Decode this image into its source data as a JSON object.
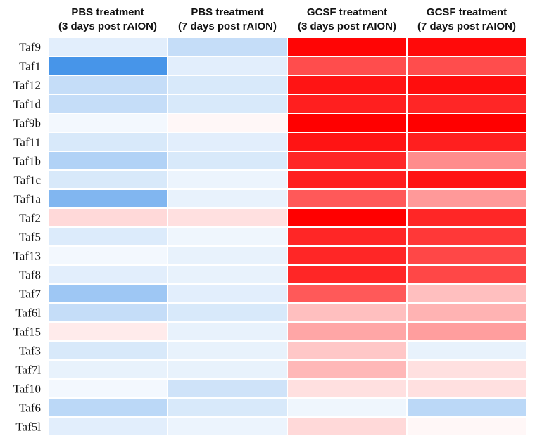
{
  "chart_data": {
    "type": "heatmap",
    "title": "",
    "columns": [
      [
        "PBS treatment",
        "(3 days post rAION)"
      ],
      [
        "PBS treatment",
        "(7 days post rAION)"
      ],
      [
        "GCSF treatment",
        "(3 days post rAION)"
      ],
      [
        "GCSF treatment",
        "(7 days post rAION)"
      ]
    ],
    "rows": [
      "Taf9",
      "Taf1",
      "Taf12",
      "Taf1d",
      "Taf9b",
      "Taf11",
      "Taf1b",
      "Taf1c",
      "Taf1a",
      "Taf2",
      "Taf5",
      "Taf13",
      "Taf8",
      "Taf7",
      "Taf6l",
      "Taf15",
      "Taf3",
      "Taf7l",
      "Taf10",
      "Taf6",
      "Taf5l"
    ],
    "color_scale": {
      "low": "#3d8fe8",
      "mid": "#ffffff",
      "high": "#ff0000",
      "min": -1,
      "max": 1
    },
    "values": [
      [
        -0.15,
        -0.3,
        0.98,
        0.96
      ],
      [
        -0.95,
        -0.15,
        0.7,
        0.7
      ],
      [
        -0.3,
        -0.2,
        0.92,
        0.95
      ],
      [
        -0.3,
        -0.2,
        0.88,
        0.85
      ],
      [
        -0.06,
        0.03,
        1.0,
        1.0
      ],
      [
        -0.2,
        -0.15,
        0.92,
        0.88
      ],
      [
        -0.4,
        -0.2,
        0.85,
        0.45
      ],
      [
        -0.2,
        -0.1,
        0.88,
        0.92
      ],
      [
        -0.65,
        -0.12,
        0.65,
        0.4
      ],
      [
        0.15,
        0.12,
        1.0,
        0.85
      ],
      [
        -0.18,
        -0.08,
        0.85,
        0.78
      ],
      [
        -0.06,
        -0.12,
        0.85,
        0.72
      ],
      [
        -0.15,
        -0.12,
        0.85,
        0.72
      ],
      [
        -0.5,
        -0.15,
        0.65,
        0.25
      ],
      [
        -0.3,
        -0.2,
        0.25,
        0.3
      ],
      [
        0.08,
        -0.12,
        0.35,
        0.38
      ],
      [
        -0.2,
        -0.12,
        0.22,
        -0.12
      ],
      [
        -0.12,
        -0.12,
        0.28,
        0.12
      ],
      [
        -0.06,
        -0.25,
        0.12,
        0.12
      ],
      [
        -0.35,
        -0.2,
        -0.08,
        -0.35
      ],
      [
        -0.15,
        -0.1,
        0.15,
        0.03
      ]
    ]
  }
}
